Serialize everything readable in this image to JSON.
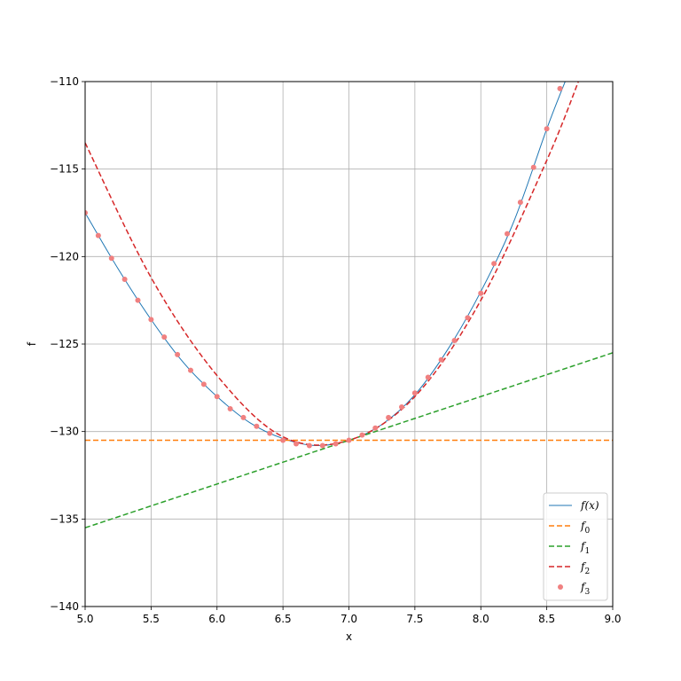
{
  "chart_data": {
    "type": "line",
    "title": "",
    "xlabel": "x",
    "ylabel": "f",
    "xlim": [
      5.0,
      9.0
    ],
    "ylim": [
      -140,
      -110
    ],
    "x_ticks": [
      5.0,
      5.5,
      6.0,
      6.5,
      7.0,
      7.5,
      8.0,
      8.5,
      9.0
    ],
    "x_tick_labels": [
      "5.0",
      "5.5",
      "6.0",
      "6.5",
      "7.0",
      "7.5",
      "8.0",
      "8.5",
      "9.0"
    ],
    "y_ticks": [
      -140,
      -135,
      -130,
      -125,
      -120,
      -115,
      -110
    ],
    "y_tick_labels": [
      "−140",
      "−135",
      "−130",
      "−125",
      "−120",
      "−115",
      "−110"
    ],
    "grid": true,
    "legend_position": "lower-right",
    "series": [
      {
        "name": "f(x)",
        "style": "solid",
        "color": "#1f77b4",
        "x": [
          5.0,
          5.25,
          5.5,
          5.75,
          6.0,
          6.25,
          6.5,
          6.75,
          7.0,
          7.25,
          7.5,
          7.75,
          8.0,
          8.25,
          8.5,
          8.65
        ],
        "y": [
          -117.5,
          -120.7,
          -123.6,
          -126.1,
          -128.0,
          -129.5,
          -130.4,
          -130.8,
          -130.5,
          -129.6,
          -127.9,
          -125.3,
          -122.0,
          -118.0,
          -112.7,
          -109.8
        ]
      },
      {
        "name": "f_0",
        "style": "dashed",
        "color": "#ff7f0e",
        "x": [
          5.0,
          9.0
        ],
        "y": [
          -130.5,
          -130.5
        ]
      },
      {
        "name": "f_1",
        "style": "dashed",
        "color": "#2ca02c",
        "x": [
          5.0,
          9.0
        ],
        "y": [
          -135.5,
          -125.5
        ]
      },
      {
        "name": "f_2",
        "style": "dashed",
        "color": "#d62728",
        "x": [
          5.0,
          5.5,
          6.0,
          6.5,
          7.0,
          7.5,
          8.0,
          8.5,
          8.75
        ],
        "y": [
          -113.5,
          -121.2,
          -126.8,
          -130.3,
          -130.5,
          -128.0,
          -122.5,
          -114.5,
          -109.8
        ]
      },
      {
        "name": "f_3",
        "style": "markers",
        "color": "#f08080",
        "x": [
          5.0,
          5.1,
          5.2,
          5.3,
          5.4,
          5.5,
          5.6,
          5.7,
          5.8,
          5.9,
          6.0,
          6.1,
          6.2,
          6.3,
          6.4,
          6.5,
          6.6,
          6.7,
          6.8,
          6.9,
          7.0,
          7.1,
          7.2,
          7.3,
          7.4,
          7.5,
          7.6,
          7.7,
          7.8,
          7.9,
          8.0,
          8.1,
          8.2,
          8.3,
          8.4,
          8.5,
          8.6
        ],
        "y": [
          -117.5,
          -118.8,
          -120.1,
          -121.3,
          -122.5,
          -123.6,
          -124.6,
          -125.6,
          -126.5,
          -127.3,
          -128.0,
          -128.7,
          -129.2,
          -129.7,
          -130.1,
          -130.5,
          -130.7,
          -130.8,
          -130.8,
          -130.7,
          -130.5,
          -130.2,
          -129.8,
          -129.2,
          -128.6,
          -127.8,
          -126.9,
          -125.9,
          -124.8,
          -123.5,
          -122.1,
          -120.4,
          -118.7,
          -116.9,
          -114.9,
          -112.7,
          -110.4
        ]
      }
    ],
    "legend": [
      {
        "label": "f",
        "suffix": "(x)",
        "sub": ""
      },
      {
        "label": "f",
        "suffix": "",
        "sub": "0"
      },
      {
        "label": "f",
        "suffix": "",
        "sub": "1"
      },
      {
        "label": "f",
        "suffix": "",
        "sub": "2"
      },
      {
        "label": "f",
        "suffix": "",
        "sub": "3"
      }
    ]
  }
}
